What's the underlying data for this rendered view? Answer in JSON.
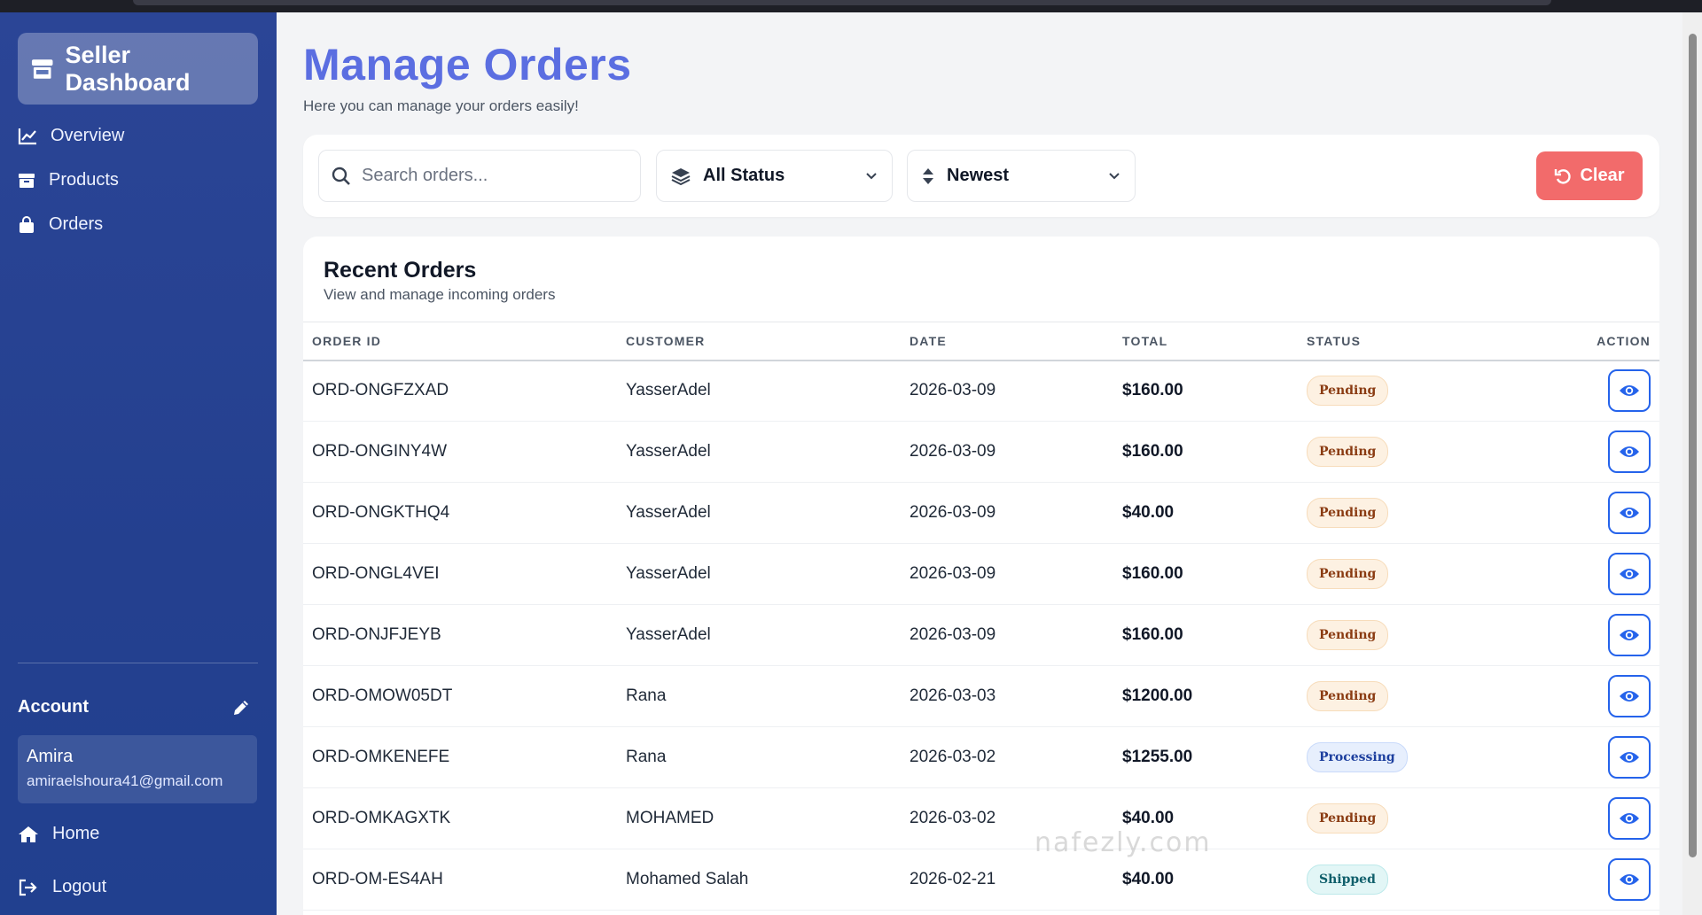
{
  "sidebar": {
    "brand": "Seller Dashboard",
    "nav": [
      {
        "label": "Overview",
        "icon": "chart-line-icon"
      },
      {
        "label": "Products",
        "icon": "box-icon"
      },
      {
        "label": "Orders",
        "icon": "shopping-bag-icon"
      }
    ],
    "account": {
      "title": "Account",
      "name": "Amira",
      "email": "amiraelshoura41@gmail.com"
    },
    "bottom": [
      {
        "label": "Home",
        "icon": "home-icon"
      },
      {
        "label": "Logout",
        "icon": "logout-icon"
      }
    ]
  },
  "header": {
    "title": "Manage Orders",
    "subtitle": "Here you can manage your orders easily!"
  },
  "filters": {
    "search_placeholder": "Search orders...",
    "status_value": "All Status",
    "sort_value": "Newest",
    "clear_label": "Clear"
  },
  "orders": {
    "title": "Recent Orders",
    "subtitle": "View and manage incoming orders",
    "columns": [
      "ORDER ID",
      "CUSTOMER",
      "DATE",
      "TOTAL",
      "STATUS",
      "ACTION"
    ],
    "rows": [
      {
        "id": "ORD-ONGFZXAD",
        "customer": "YasserAdel",
        "date": "2026-03-09",
        "total": "$160.00",
        "status": "Pending"
      },
      {
        "id": "ORD-ONGINY4W",
        "customer": "YasserAdel",
        "date": "2026-03-09",
        "total": "$160.00",
        "status": "Pending"
      },
      {
        "id": "ORD-ONGKTHQ4",
        "customer": "YasserAdel",
        "date": "2026-03-09",
        "total": "$40.00",
        "status": "Pending"
      },
      {
        "id": "ORD-ONGL4VEI",
        "customer": "YasserAdel",
        "date": "2026-03-09",
        "total": "$160.00",
        "status": "Pending"
      },
      {
        "id": "ORD-ONJFJEYB",
        "customer": "YasserAdel",
        "date": "2026-03-09",
        "total": "$160.00",
        "status": "Pending"
      },
      {
        "id": "ORD-OMOW05DT",
        "customer": "Rana",
        "date": "2026-03-03",
        "total": "$1200.00",
        "status": "Pending"
      },
      {
        "id": "ORD-OMKENEFE",
        "customer": "Rana",
        "date": "2026-03-02",
        "total": "$1255.00",
        "status": "Processing"
      },
      {
        "id": "ORD-OMKAGXTK",
        "customer": "MOHAMED",
        "date": "2026-03-02",
        "total": "$40.00",
        "status": "Pending"
      },
      {
        "id": "ORD-OM-ES4AH",
        "customer": "Mohamed Salah",
        "date": "2026-02-21",
        "total": "$40.00",
        "status": "Shipped"
      }
    ]
  },
  "watermark": "nafezly.com",
  "colors": {
    "accent": "#5b6ee1",
    "sidebar": "#24408f",
    "danger": "#f26b6b",
    "link": "#2563eb"
  }
}
